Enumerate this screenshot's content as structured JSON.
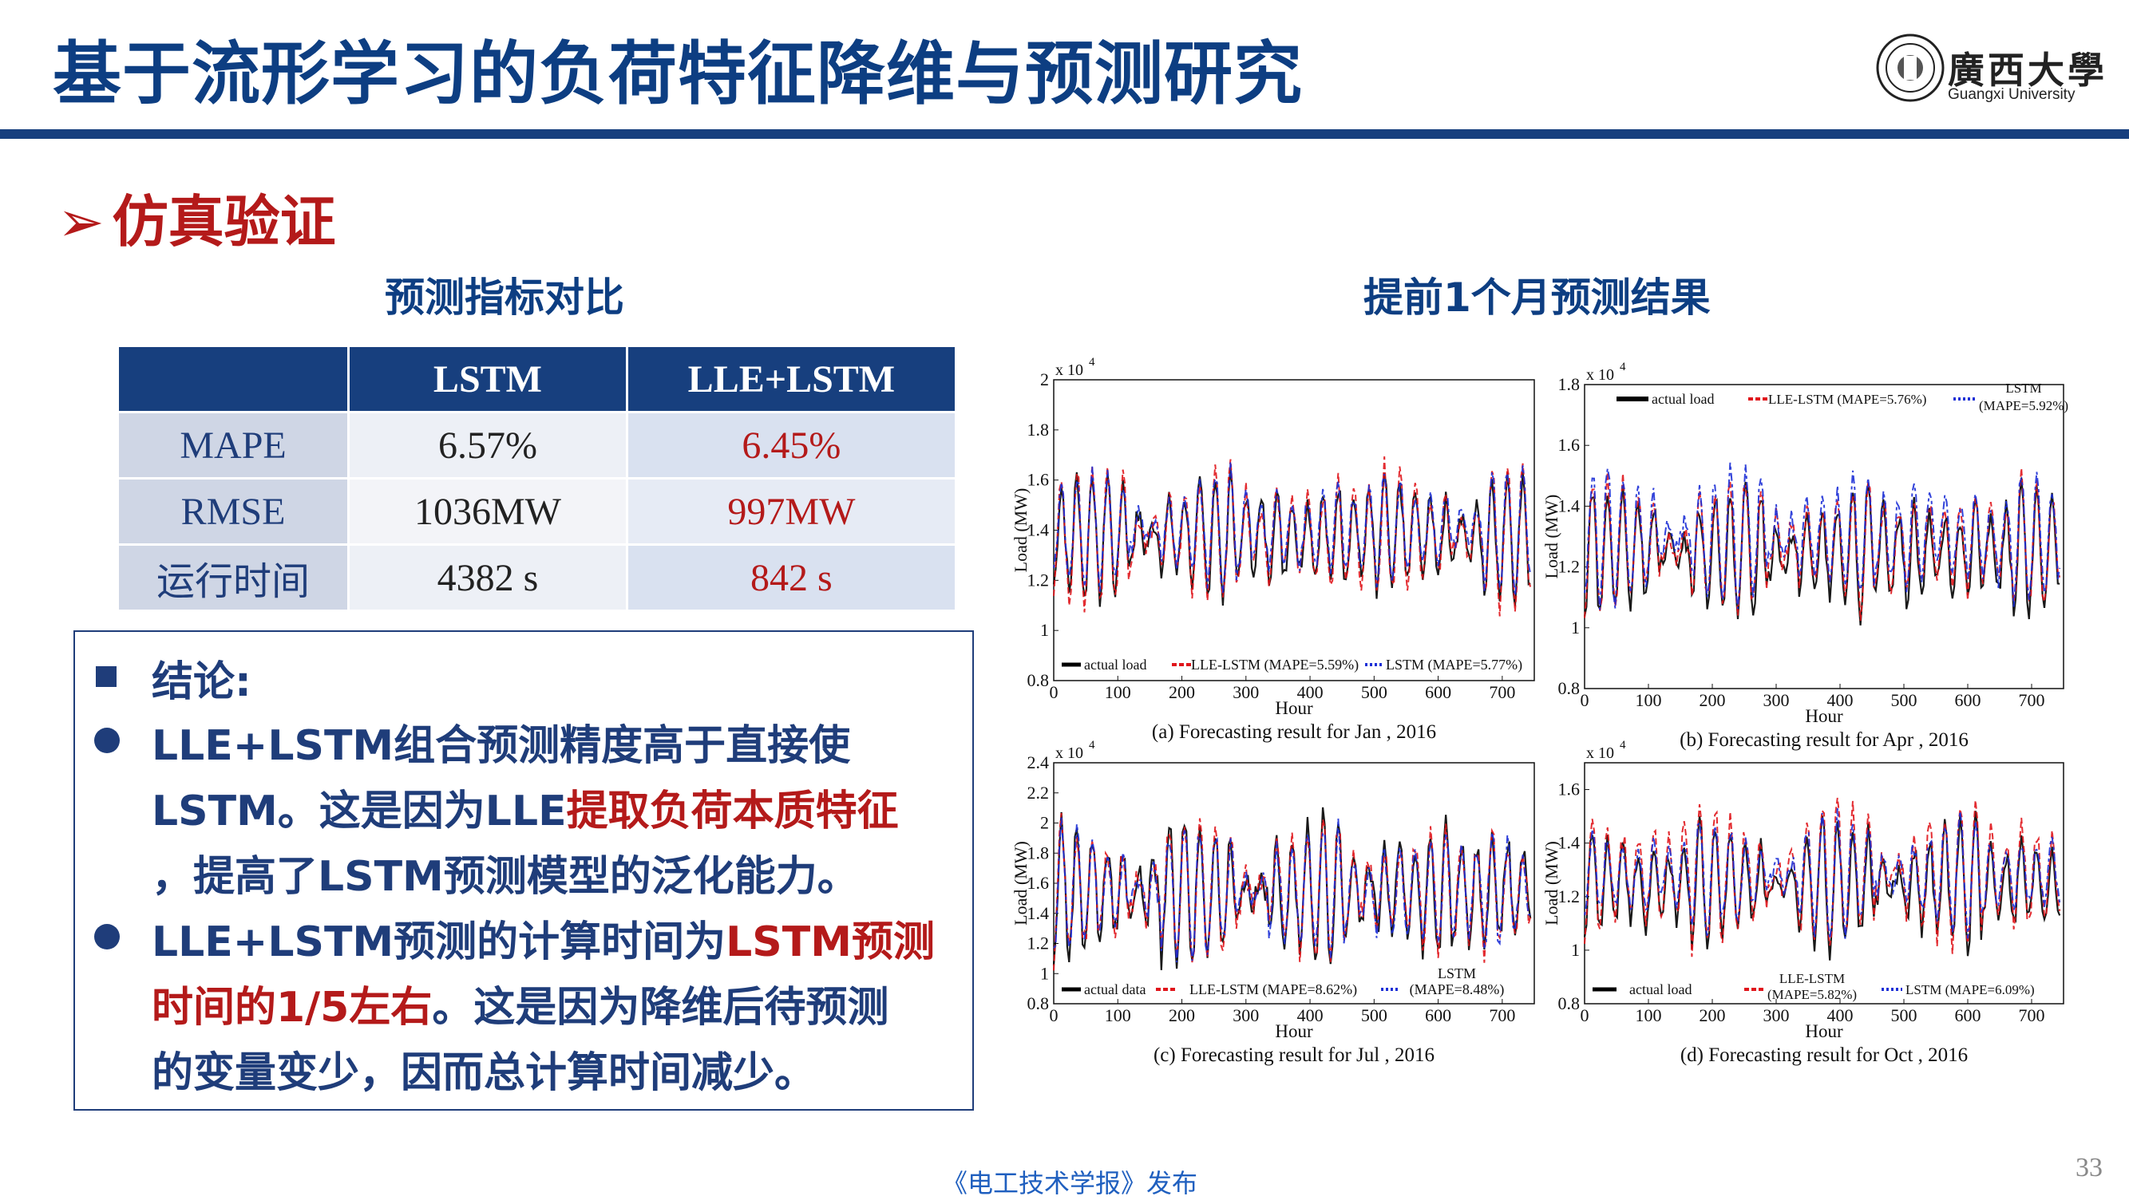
{
  "header": {
    "title": "基于流形学习的负荷特征降维与预测研究",
    "logo_text": "廣西大學",
    "logo_sub": "Guangxi University"
  },
  "section_title": "仿真验证",
  "table": {
    "heading": "预测指标对比",
    "columns": [
      "",
      "LSTM",
      "LLE+LSTM"
    ],
    "rows": [
      {
        "label": "MAPE",
        "lstm": "6.57%",
        "lle_lstm": "6.45%"
      },
      {
        "label": "RMSE",
        "lstm": "1036MW",
        "lle_lstm": "997MW"
      },
      {
        "label": "运行时间",
        "lstm": "4382 s",
        "lle_lstm": "842 s"
      }
    ]
  },
  "conclusion": {
    "heading": "结论:",
    "line1": "LLE+LSTM组合预测精度高于直接使",
    "line2a": "LSTM。这是因为LLE",
    "line2b": "提取负荷本质特征",
    "line3": "，提高了LSTM预测模型的泛化能力。",
    "line4a": "LLE+LSTM预测的计算时间为",
    "line4b": "LSTM预测",
    "line5a": "时间的1/5左右",
    "line5b": "。这是因为降维后待预测",
    "line6": "的变量变少，因而总计算时间减少。"
  },
  "charts_heading": "提前1个月预测结果",
  "chart_data": [
    {
      "type": "line",
      "panel": "a",
      "caption": "(a)  Forecasting result for Jan , 2016",
      "xlabel": "Hour",
      "ylabel": "Load (MW)",
      "y_multiplier": "x 10",
      "y_exponent": "4",
      "xlim": [
        0,
        750
      ],
      "ylim": [
        0.8,
        2.0
      ],
      "xticks": [
        "0",
        "100",
        "200",
        "300",
        "400",
        "500",
        "600",
        "700"
      ],
      "yticks": [
        "0.8",
        "1",
        "1.2",
        "1.4",
        "1.6",
        "1.8",
        "2"
      ],
      "legend": [
        "actual load",
        "LLE-LSTM (MAPE=5.59%)",
        "LSTM (MAPE=5.77%)"
      ],
      "series": [
        {
          "name": "actual load",
          "color": "#000000",
          "base": 1.38,
          "amp": 0.26
        },
        {
          "name": "LLE-LSTM (MAPE=5.59%)",
          "color": "#e0151b",
          "base": 1.38,
          "amp": 0.28
        },
        {
          "name": "LSTM (MAPE=5.77%)",
          "color": "#1c2fd6",
          "base": 1.4,
          "amp": 0.24
        }
      ]
    },
    {
      "type": "line",
      "panel": "b",
      "caption": "(b)  Forecasting result for Apr , 2016",
      "xlabel": "Hour",
      "ylabel": "Load (MW)",
      "y_multiplier": "x 10",
      "y_exponent": "4",
      "xlim": [
        0,
        750
      ],
      "ylim": [
        0.8,
        1.8
      ],
      "xticks": [
        "0",
        "100",
        "200",
        "300",
        "400",
        "500",
        "600",
        "700"
      ],
      "yticks": [
        "0.8",
        "1",
        "1.2",
        "1.4",
        "1.6",
        "1.8"
      ],
      "legend": [
        "actual load",
        "LLE-LSTM (MAPE=5.76%)",
        "LSTM",
        "(MAPE=5.92%)"
      ],
      "series": [
        {
          "name": "actual load",
          "color": "#000000",
          "base": 1.25,
          "amp": 0.22
        },
        {
          "name": "LLE-LSTM (MAPE=5.76%)",
          "color": "#e0151b",
          "base": 1.27,
          "amp": 0.22
        },
        {
          "name": "LSTM (MAPE=5.92%)",
          "color": "#1c2fd6",
          "base": 1.3,
          "amp": 0.22
        }
      ]
    },
    {
      "type": "line",
      "panel": "c",
      "caption": "(c)  Forecasting result for Jul , 2016",
      "xlabel": "Hour",
      "ylabel": "Load (MW)",
      "y_multiplier": "x 10",
      "y_exponent": "4",
      "xlim": [
        0,
        750
      ],
      "ylim": [
        0.8,
        2.4
      ],
      "xticks": [
        "0",
        "100",
        "200",
        "300",
        "400",
        "500",
        "600",
        "700"
      ],
      "yticks": [
        "0.8",
        "1",
        "1.2",
        "1.4",
        "1.6",
        "1.8",
        "2",
        "2.2",
        "2.4"
      ],
      "legend": [
        "actual data",
        "LLE-LSTM (MAPE=8.62%)",
        "LSTM",
        "(MAPE=8.48%)"
      ],
      "series": [
        {
          "name": "actual data",
          "color": "#000000",
          "base": 1.55,
          "amp": 0.5
        },
        {
          "name": "LLE-LSTM (MAPE=8.62%)",
          "color": "#e0151b",
          "base": 1.55,
          "amp": 0.48
        },
        {
          "name": "LSTM (MAPE=8.48%)",
          "color": "#1c2fd6",
          "base": 1.55,
          "amp": 0.44
        }
      ]
    },
    {
      "type": "line",
      "panel": "d",
      "caption": "(d)  Forecasting result for Oct , 2016",
      "xlabel": "Hour",
      "ylabel": "Load (MW)",
      "y_multiplier": "x 10",
      "y_exponent": "4",
      "xlim": [
        0,
        750
      ],
      "ylim": [
        0.8,
        1.7
      ],
      "xticks": [
        "0",
        "100",
        "200",
        "300",
        "400",
        "500",
        "600",
        "700"
      ],
      "yticks": [
        "0.8",
        "1",
        "1.2",
        "1.4",
        "1.6"
      ],
      "legend": [
        "actual load",
        "LLE-LSTM",
        "(MAPE=5.82%)",
        "LSTM (MAPE=6.09%)"
      ],
      "series": [
        {
          "name": "actual load",
          "color": "#000000",
          "base": 1.25,
          "amp": 0.25
        },
        {
          "name": "LLE-LSTM (MAPE=5.82%)",
          "color": "#e0151b",
          "base": 1.28,
          "amp": 0.28
        },
        {
          "name": "LSTM (MAPE=6.09%)",
          "color": "#1c2fd6",
          "base": 1.28,
          "amp": 0.22
        }
      ]
    }
  ],
  "footer": "《电工技术学报》发布",
  "page_number": "33"
}
